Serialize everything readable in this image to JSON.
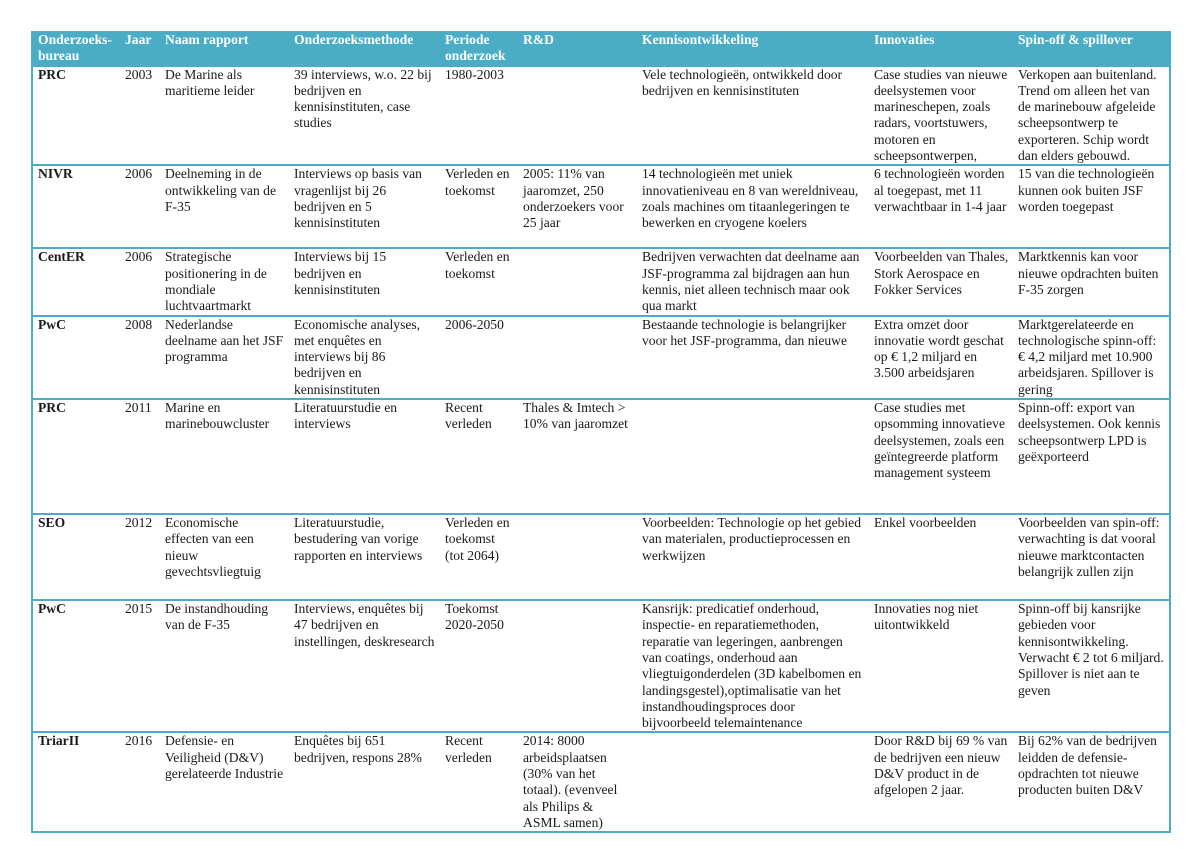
{
  "colors": {
    "header_bg": "#4bacc6",
    "border": "#4bacc6",
    "header_text": "#ffffff"
  },
  "headers": [
    "Onderzoeks-bureau",
    "Jaar",
    "Naam rapport",
    "Onderzoeksmethode",
    "Periode onderzoek",
    "R&D",
    "Kennisontwikkeling",
    "Innovaties",
    "Spin-off & spillover"
  ],
  "rows": [
    [
      "PRC",
      "2003",
      "De Marine als maritieme leider",
      "39 interviews, w.o. 22 bij bedrijven en kennisinstituten, case studies",
      "1980-2003",
      "",
      "Vele technologieën, ontwikkeld door bedrijven en kennisinstituten",
      "Case studies van nieuwe deelsystemen voor marineschepen, zoals radars, voortstuwers, motoren en scheepsontwerpen,",
      "Verkopen aan buitenland. Trend om alleen het van de marinebouw afgeleide scheepsontwerp te exporteren. Schip wordt dan elders gebouwd."
    ],
    [
      "NIVR",
      "2006",
      "Deelneming in de ontwikkeling van de F-35",
      "Interviews op basis van vragenlijst bij 26 bedrijven en 5 kennisinstituten",
      "Verleden en toekomst",
      "2005: 11% van jaaromzet, 250 onderzoekers voor 25 jaar",
      "14 technologieën met uniek innovatieniveau en 8 van wereldniveau, zoals machines om titaanlegeringen te bewerken en cryogene koelers",
      "6 technologieën worden al toegepast, met 11 verwachtbaar in 1-4 jaar",
      "15 van die technologieën kunnen ook buiten JSF worden toegepast"
    ],
    [
      "CentER",
      "2006",
      "Strategische positionering in de mondiale luchtvaartmarkt",
      "Interviews bij 15 bedrijven en kennisinstituten",
      "Verleden en toekomst",
      "",
      "Bedrijven verwachten dat deelname aan JSF-programma zal bijdragen aan hun kennis, niet alleen technisch maar ook qua markt",
      "Voorbeelden van Thales, Stork Aerospace en Fokker Services",
      "Marktkennis kan voor nieuwe opdrachten buiten F-35 zorgen"
    ],
    [
      "PwC",
      "2008",
      "Nederlandse deelname aan het JSF programma",
      "Economische analyses, met enquêtes en interviews bij 86 bedrijven en kennisinstituten",
      "2006-2050",
      "",
      "Bestaande technologie is belangrijker voor het JSF-programma, dan nieuwe",
      "Extra omzet door innovatie wordt geschat op € 1,2 miljard en 3.500 arbeidsjaren",
      "Marktgerelateerde en technologische spinn-off: € 4,2 miljard met 10.900 arbeidsjaren. Spillover is gering"
    ],
    [
      "PRC",
      "2011",
      "Marine en marinebouwcluster",
      "Literatuurstudie en interviews",
      "Recent verleden",
      "Thales & Imtech > 10% van jaaromzet",
      "",
      "Case studies met opsomming innovatieve deelsystemen, zoals een geïntegreerde platform management systeem",
      "Spinn-off: export van deelsystemen. Ook kennis scheepsontwerp LPD is geëxporteerd"
    ],
    [
      "SEO",
      "2012",
      "Economische effecten van een nieuw gevechtsvliegtuig",
      "Literatuurstudie, bestudering van vorige rapporten en interviews",
      "Verleden en toekomst (tot 2064)",
      "",
      "Voorbeelden: Technologie op het gebied van materialen, productieprocessen en werkwijzen",
      "Enkel voorbeelden",
      "Voorbeelden van spin-off: verwachting is dat vooral nieuwe marktcontacten belangrijk zullen zijn"
    ],
    [
      "PwC",
      "2015",
      "De instandhouding van de F-35",
      "Interviews, enquêtes bij 47 bedrijven en instellingen, deskresearch",
      "Toekomst 2020-2050",
      "",
      "Kansrijk: predicatief onderhoud, inspectie- en reparatiemethoden, reparatie van legeringen, aanbrengen van coatings, onderhoud aan vliegtuigonderdelen (3D kabelbomen en landingsgestel),optimalisatie van het instandhoudingsproces door bijvoorbeeld  telemaintenance",
      "Innovaties nog niet uitontwikkeld",
      "Spinn-off bij kansrijke gebieden voor kennisontwikkeling. Verwacht € 2 tot 6 miljard. Spillover is niet aan te geven"
    ],
    [
      "TriarII",
      "2016",
      "Defensie- en Veiligheid (D&V) gerelateerde Industrie",
      "Enquêtes bij 651 bedrijven, respons 28%",
      "Recent verleden",
      "2014: 8000 arbeidsplaatsen (30% van het totaal). (evenveel als Philips & ASML samen)",
      "",
      "Door R&D bij 69 % van de bedrijven een nieuw D&V product in de afgelopen 2 jaar.",
      "Bij 62% van de bedrijven leidden de defensie-opdrachten tot nieuwe producten buiten D&V"
    ]
  ]
}
